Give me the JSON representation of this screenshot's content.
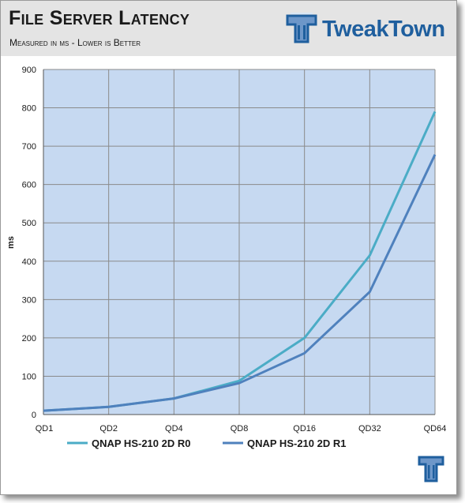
{
  "header": {
    "title": "File Server Latency",
    "subtitle": "Measured in ms - Lower is Better",
    "logo_text": "TweakTown"
  },
  "colors": {
    "plot_background": "#c6d9f1",
    "header_background": "#e4e4e4",
    "series_r0": "#4bacc6",
    "series_r1": "#4f81bd",
    "logo_blue": "#1f5f9e"
  },
  "chart_data": {
    "type": "line",
    "title": "File Server Latency",
    "subtitle": "Measured in ms - Lower is Better",
    "xlabel": "",
    "ylabel": "ms",
    "ylim": [
      0,
      900
    ],
    "yticks": [
      0,
      100,
      200,
      300,
      400,
      500,
      600,
      700,
      800,
      900
    ],
    "grid": true,
    "legend_position": "bottom",
    "categories": [
      "QD1",
      "QD2",
      "QD4",
      "QD8",
      "QD16",
      "QD32",
      "QD64"
    ],
    "series": [
      {
        "name": "QNAP HS-210 2D R0",
        "color": "#4bacc6",
        "values": [
          10,
          20,
          42,
          88,
          200,
          415,
          790
        ]
      },
      {
        "name": "QNAP HS-210 2D R1",
        "color": "#4f81bd",
        "values": [
          10,
          20,
          42,
          82,
          160,
          320,
          678
        ]
      }
    ]
  }
}
